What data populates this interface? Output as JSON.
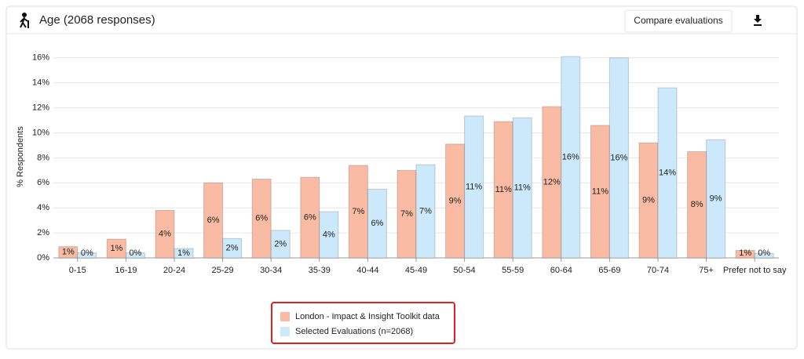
{
  "header": {
    "title": "Age (2068 responses)",
    "button": "Compare evaluations"
  },
  "chart_data": {
    "type": "bar",
    "y_label": "% Respondents",
    "categories": [
      "0-15",
      "16-19",
      "20-24",
      "25-29",
      "30-34",
      "35-39",
      "40-44",
      "45-49",
      "50-54",
      "55-59",
      "60-64",
      "65-69",
      "70-74",
      "75+",
      "Prefer not to say"
    ],
    "series": [
      {
        "name": "London - Impact & Insight Toolkit data",
        "color": "#f9bba3",
        "values": [
          0.9,
          1.5,
          3.8,
          6.0,
          6.3,
          6.45,
          7.4,
          7.0,
          9.1,
          10.9,
          12.1,
          10.6,
          9.2,
          8.5,
          0.6
        ],
        "value_labels": [
          "1%",
          "1%",
          "4%",
          "6%",
          "6%",
          "6%",
          "7%",
          "7%",
          "9%",
          "11%",
          "12%",
          "11%",
          "9%",
          "8%",
          "1%"
        ]
      },
      {
        "name": "Selected Evaluations (n=2068)",
        "color": "#cbe9fb",
        "values": [
          0.4,
          0.4,
          0.75,
          1.55,
          2.2,
          3.7,
          5.5,
          7.45,
          11.35,
          11.2,
          16.1,
          16.0,
          13.6,
          9.45,
          0.35
        ],
        "value_labels": [
          "0%",
          "0%",
          "1%",
          "2%",
          "2%",
          "4%",
          "6%",
          "7%",
          "11%",
          "11%",
          "16%",
          "16%",
          "14%",
          "9%",
          "0%"
        ]
      }
    ],
    "ylim": [
      0,
      16.3
    ],
    "yticks": [
      {
        "value": 0,
        "label": "0%"
      },
      {
        "value": 2,
        "label": "2%"
      },
      {
        "value": 4,
        "label": "4%"
      },
      {
        "value": 6,
        "label": "6%"
      },
      {
        "value": 8,
        "label": "8%"
      },
      {
        "value": 10,
        "label": "10%"
      },
      {
        "value": 12,
        "label": "12%"
      },
      {
        "value": 14,
        "label": "14%"
      },
      {
        "value": 16,
        "label": "16%"
      }
    ],
    "grid": true
  }
}
